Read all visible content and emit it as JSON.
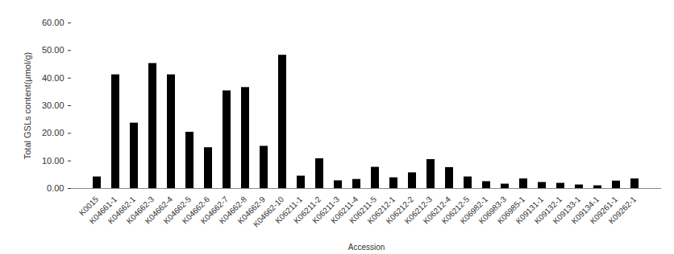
{
  "chart_data": {
    "type": "bar",
    "x_label": "Accession",
    "y_label": "Total GSLs content(μmol/g)",
    "categories": [
      "K0015",
      "K04661-1",
      "K04662-1",
      "K04662-3",
      "K04662-4",
      "K04662-5",
      "K04662-6",
      "K04662-7",
      "K04662-8",
      "K04662-9",
      "K04662-10",
      "K06211-1",
      "K06211-2",
      "K06211-3",
      "K06211-4",
      "K06211-5",
      "K06212-1",
      "K06212-2",
      "K06212-3",
      "K06212-4",
      "K06212-5",
      "K06982-1",
      "K06983-3",
      "K06985-1",
      "K09131-1",
      "K09132-1",
      "K09133-1",
      "K09134-1",
      "K09261-1",
      "K09262-1"
    ],
    "values": [
      4.2,
      41.2,
      23.7,
      45.3,
      41.2,
      20.4,
      14.8,
      35.4,
      36.6,
      15.3,
      48.3,
      4.5,
      10.8,
      2.8,
      3.3,
      7.7,
      3.9,
      5.7,
      10.5,
      7.6,
      4.2,
      2.5,
      1.6,
      3.5,
      2.2,
      1.9,
      1.3,
      1.0,
      2.7,
      3.5
    ],
    "color": "#000000",
    "ylim": [
      0,
      60
    ],
    "yticks": [
      {
        "value": 0,
        "label": "0.00"
      },
      {
        "value": 10,
        "label": "10.00"
      },
      {
        "value": 20,
        "label": "20.00"
      },
      {
        "value": 30,
        "label": "30.00"
      },
      {
        "value": 40,
        "label": "40.00"
      },
      {
        "value": 50,
        "label": "50.00"
      },
      {
        "value": 60,
        "label": "60.00"
      }
    ],
    "grid": false
  }
}
